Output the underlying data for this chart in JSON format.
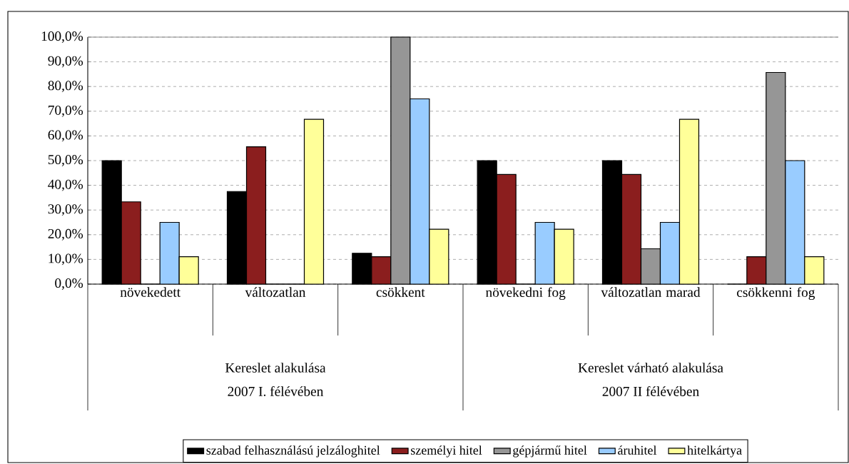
{
  "chart_data": {
    "type": "bar",
    "categories": [
      "növekedett",
      "változatlan",
      "csökkent",
      "növekedni fog",
      "változatlan marad",
      "csökkenni fog"
    ],
    "series": [
      {
        "name": "szabad felhasználású jelzáloghitel",
        "color": "#000000",
        "values": [
          50,
          37.5,
          12.5,
          50,
          50,
          0
        ]
      },
      {
        "name": "személyi hitel",
        "color": "#8b1e1e",
        "values": [
          33.3,
          55.6,
          11.1,
          44.4,
          44.4,
          11.1
        ]
      },
      {
        "name": "gépjármű hitel",
        "color": "#969696",
        "values": [
          0,
          0,
          100,
          0,
          14.3,
          85.7
        ]
      },
      {
        "name": "áruhitel",
        "color": "#99ccff",
        "values": [
          25,
          0,
          75,
          25,
          25,
          50
        ]
      },
      {
        "name": "hitelkártya",
        "color": "#ffff99",
        "values": [
          11.1,
          66.7,
          22.2,
          22.2,
          66.7,
          11.1
        ]
      }
    ],
    "annotations": [
      "Kereslet alakulása",
      "2007 I. félévében",
      "Kereslet várható alakulása",
      "2007 II félévében"
    ],
    "ylim": [
      0,
      100
    ],
    "yticks": [
      {
        "value": 0,
        "label": "0,0%"
      },
      {
        "value": 10,
        "label": "10,0%"
      },
      {
        "value": 20,
        "label": "20,0%"
      },
      {
        "value": 30,
        "label": "30,0%"
      },
      {
        "value": 40,
        "label": "40,0%"
      },
      {
        "value": 50,
        "label": "50,0%"
      },
      {
        "value": 60,
        "label": "60,0%"
      },
      {
        "value": 70,
        "label": "70,0%"
      },
      {
        "value": 80,
        "label": "80,0%"
      },
      {
        "value": 90,
        "label": "90,0%"
      },
      {
        "value": 100,
        "label": "100,0%"
      }
    ],
    "grid": "y",
    "legend": "bottom"
  }
}
